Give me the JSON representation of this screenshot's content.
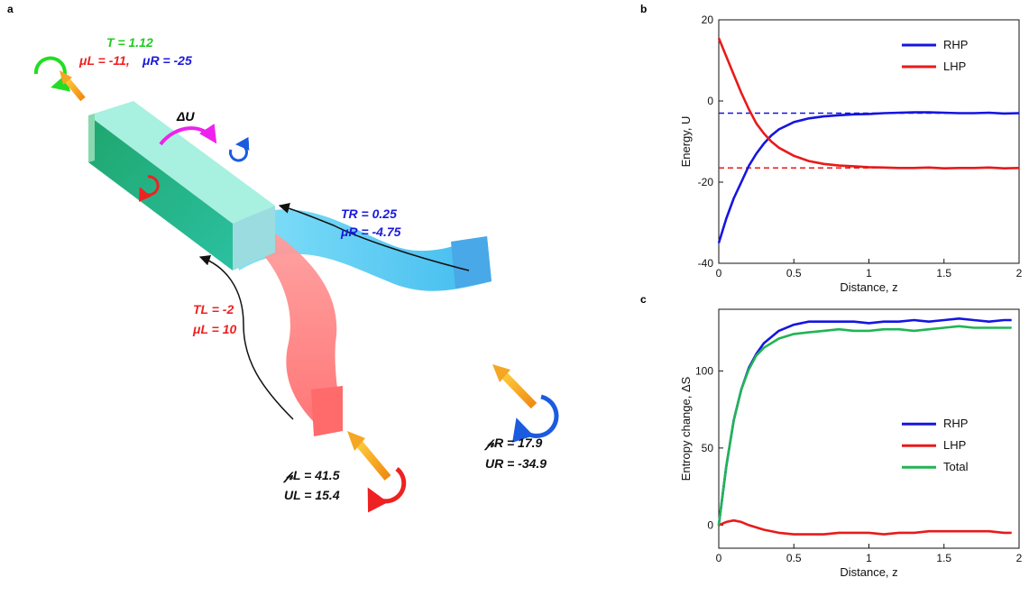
{
  "panel_labels": {
    "a": "a",
    "b": "b",
    "c": "c"
  },
  "schematic": {
    "top_T": "T = 1.12",
    "top_muL": "μL = -11,",
    "top_muR": "μR = -25",
    "delta_U": "ΔU",
    "TR": "TR = 0.25",
    "muR": "μR = -4.75",
    "TL": "TL = -2",
    "muL": "μL = 10",
    "PL": "𝓅L = 41.5",
    "UL": "UL = 15.4",
    "PR": "𝓅R = 17.9",
    "UR": "UR = -34.9",
    "colors": {
      "green": "#22dd22",
      "red": "#ee2222",
      "blue": "#1b1bdd",
      "magenta": "#ee22ee",
      "orange": "#f5a623",
      "teal": "#1aa070",
      "cyan": "#55c8ee",
      "pink": "#ff8a8a"
    }
  },
  "chart_data": [
    {
      "type": "line",
      "xlabel": "Distance, z",
      "ylabel": "Energy, U",
      "xlim": [
        0,
        2
      ],
      "ylim": [
        -40,
        20
      ],
      "xticks": [
        "0",
        "0.5",
        "1",
        "1.5",
        "2"
      ],
      "yticks": [
        "-40",
        "-20",
        "0",
        "20"
      ],
      "legend": "top-right",
      "series": [
        {
          "name": "RHP",
          "color": "#1515e0",
          "x": [
            0,
            0.05,
            0.1,
            0.15,
            0.2,
            0.25,
            0.3,
            0.35,
            0.4,
            0.5,
            0.6,
            0.7,
            0.8,
            0.9,
            1.0,
            1.1,
            1.2,
            1.3,
            1.4,
            1.5,
            1.6,
            1.7,
            1.8,
            1.9,
            2.0
          ],
          "y": [
            -35,
            -29,
            -24,
            -20,
            -16,
            -13,
            -10.5,
            -8.5,
            -7,
            -5.2,
            -4.3,
            -3.8,
            -3.5,
            -3.3,
            -3.2,
            -3.0,
            -2.9,
            -2.8,
            -2.8,
            -2.9,
            -3.0,
            -3.0,
            -2.9,
            -3.1,
            -3.0
          ]
        },
        {
          "name": "LHP",
          "color": "#e81a1a",
          "x": [
            0,
            0.05,
            0.1,
            0.15,
            0.2,
            0.25,
            0.3,
            0.35,
            0.4,
            0.5,
            0.6,
            0.7,
            0.8,
            0.9,
            1.0,
            1.1,
            1.2,
            1.3,
            1.4,
            1.5,
            1.6,
            1.7,
            1.8,
            1.9,
            2.0
          ],
          "y": [
            15.5,
            11,
            6.5,
            2,
            -2,
            -5.5,
            -8,
            -10,
            -11.5,
            -13.5,
            -14.8,
            -15.5,
            -15.9,
            -16.1,
            -16.3,
            -16.4,
            -16.5,
            -16.5,
            -16.4,
            -16.6,
            -16.5,
            -16.5,
            -16.4,
            -16.6,
            -16.5
          ]
        }
      ],
      "reference_lines": [
        {
          "y": -3,
          "color": "#1515e0",
          "style": "dashed"
        },
        {
          "y": -16.5,
          "color": "#e81a1a",
          "style": "dashed"
        }
      ]
    },
    {
      "type": "line",
      "xlabel": "Distance, z",
      "ylabel": "Entropy change, ΔS",
      "xlim": [
        0,
        2
      ],
      "ylim": [
        -15,
        140
      ],
      "xticks": [
        "0",
        "0.5",
        "1",
        "1.5",
        "2"
      ],
      "yticks": [
        "0",
        "50",
        "100"
      ],
      "legend": "center-right",
      "series": [
        {
          "name": "RHP",
          "color": "#1515e0",
          "x": [
            0,
            0.05,
            0.1,
            0.15,
            0.2,
            0.25,
            0.3,
            0.35,
            0.4,
            0.5,
            0.6,
            0.7,
            0.8,
            0.9,
            1.0,
            1.1,
            1.2,
            1.3,
            1.4,
            1.5,
            1.6,
            1.7,
            1.8,
            1.9,
            1.95
          ],
          "y": [
            0,
            38,
            68,
            88,
            102,
            111,
            118,
            122,
            126,
            130,
            132,
            132,
            132,
            132,
            131,
            132,
            132,
            133,
            132,
            133,
            134,
            133,
            132,
            133,
            133
          ]
        },
        {
          "name": "LHP",
          "color": "#e81a1a",
          "x": [
            0,
            0.05,
            0.1,
            0.15,
            0.2,
            0.3,
            0.4,
            0.5,
            0.6,
            0.7,
            0.8,
            0.9,
            1.0,
            1.1,
            1.2,
            1.3,
            1.4,
            1.5,
            1.6,
            1.7,
            1.8,
            1.9,
            1.95
          ],
          "y": [
            0,
            2,
            3,
            2,
            0,
            -3,
            -5,
            -6,
            -6,
            -6,
            -5,
            -5,
            -5,
            -6,
            -5,
            -5,
            -4,
            -4,
            -4,
            -4,
            -4,
            -5,
            -5
          ]
        },
        {
          "name": "Total",
          "color": "#22b455",
          "x": [
            0,
            0.05,
            0.1,
            0.15,
            0.2,
            0.25,
            0.3,
            0.35,
            0.4,
            0.5,
            0.6,
            0.7,
            0.8,
            0.9,
            1.0,
            1.1,
            1.2,
            1.3,
            1.4,
            1.5,
            1.6,
            1.7,
            1.8,
            1.9,
            1.95
          ],
          "y": [
            0,
            38,
            68,
            88,
            101,
            110,
            115,
            118,
            121,
            124,
            125,
            126,
            127,
            126,
            126,
            127,
            127,
            126,
            127,
            128,
            129,
            128,
            128,
            128,
            128
          ]
        }
      ]
    }
  ]
}
